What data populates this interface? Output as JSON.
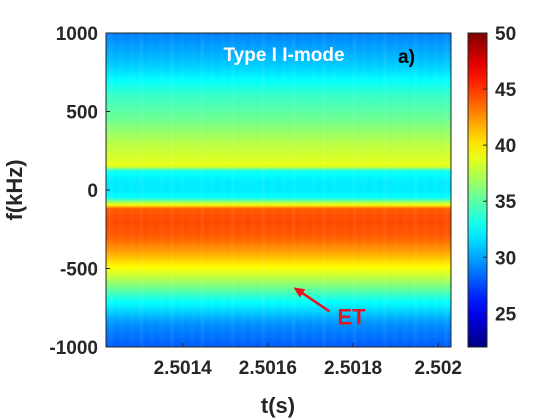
{
  "chart_data": {
    "type": "heatmap",
    "title": "Type I I-mode",
    "panel_label": "a)",
    "xlabel": "t(s)",
    "ylabel": "f(kHz)",
    "xlim": [
      2.50122,
      2.50203
    ],
    "ylim": [
      -1000,
      1000
    ],
    "xticks": [
      2.5014,
      2.5016,
      2.5018,
      2.502
    ],
    "xtick_labels": [
      "2.5014",
      "2.5016",
      "2.5018",
      "2.502"
    ],
    "yticks": [
      1000,
      500,
      0,
      -500,
      -1000
    ],
    "ytick_labels": [
      "1000",
      "500",
      "0",
      "-500",
      "-1000"
    ],
    "colorbar": {
      "range": [
        22,
        50
      ],
      "ticks": [
        50,
        45,
        40,
        35,
        30,
        25
      ],
      "tick_labels": [
        "50",
        "45",
        "40",
        "35",
        "30",
        "25"
      ],
      "colormap": "jet"
    },
    "frequency_profile": {
      "frequency_kHz": [
        1000,
        800,
        600,
        450,
        300,
        200,
        150,
        120,
        100,
        50,
        0,
        -50,
        -100,
        -120,
        -200,
        -300,
        -400,
        -550,
        -700,
        -850,
        -1000
      ],
      "intensity": [
        29,
        31,
        34,
        35.5,
        37.5,
        38.5,
        39,
        33,
        32.5,
        32,
        32,
        32.5,
        40,
        44,
        44.5,
        44,
        42,
        38,
        33,
        29.5,
        28
      ]
    },
    "annotations": [
      {
        "text": "ET",
        "color": "#e8141e",
        "points_to": {
          "t": 2.50166,
          "f": -620
        }
      }
    ]
  }
}
